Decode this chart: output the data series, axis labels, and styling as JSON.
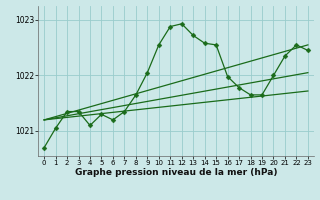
{
  "xlabel": "Graphe pression niveau de la mer (hPa)",
  "background_color": "#cce8e8",
  "grid_color": "#99cccc",
  "line_color": "#1a6b1a",
  "xlim": [
    -0.5,
    23.5
  ],
  "ylim": [
    1020.55,
    1023.25
  ],
  "yticks": [
    1021,
    1022,
    1023
  ],
  "xticks": [
    0,
    1,
    2,
    3,
    4,
    5,
    6,
    7,
    8,
    9,
    10,
    11,
    12,
    13,
    14,
    15,
    16,
    17,
    18,
    19,
    20,
    21,
    22,
    23
  ],
  "series_main_x": [
    0,
    1,
    2,
    3,
    4,
    5,
    6,
    7,
    8,
    9,
    10,
    11,
    12,
    13,
    14,
    15,
    16,
    17,
    18,
    19,
    20,
    21,
    22,
    23
  ],
  "series_main_y": [
    1020.7,
    1021.05,
    1021.35,
    1021.35,
    1021.1,
    1021.3,
    1021.2,
    1021.35,
    1021.65,
    1022.05,
    1022.55,
    1022.88,
    1022.93,
    1022.72,
    1022.58,
    1022.55,
    1021.98,
    1021.78,
    1021.65,
    1021.65,
    1022.0,
    1022.35,
    1022.55,
    1022.45
  ],
  "trend1_x": [
    0,
    23
  ],
  "trend1_y": [
    1021.2,
    1022.55
  ],
  "trend2_x": [
    0,
    23
  ],
  "trend2_y": [
    1021.2,
    1022.05
  ],
  "trend3_x": [
    0,
    23
  ],
  "trend3_y": [
    1021.2,
    1021.72
  ],
  "marker_size": 2.5,
  "line_width": 0.9,
  "tick_fontsize": 5.5,
  "xlabel_fontsize": 6.5
}
